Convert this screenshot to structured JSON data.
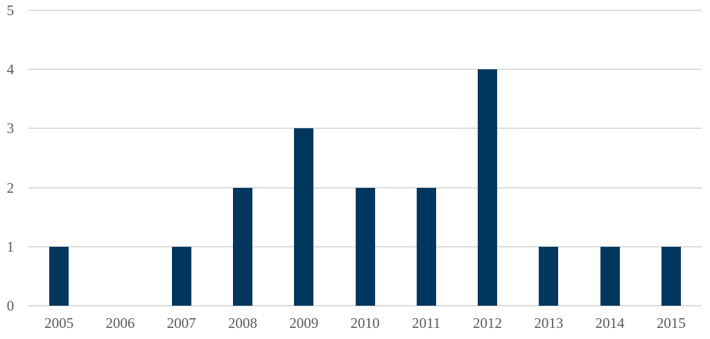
{
  "chart_data": {
    "type": "bar",
    "categories": [
      "2005",
      "2006",
      "2007",
      "2008",
      "2009",
      "2010",
      "2011",
      "2012",
      "2013",
      "2014",
      "2015"
    ],
    "values": [
      1,
      0,
      1,
      2,
      3,
      2,
      2,
      4,
      1,
      1,
      1
    ],
    "title": "",
    "xlabel": "",
    "ylabel": "",
    "ylim": [
      0,
      5
    ],
    "yticks": [
      "0",
      "1",
      "2",
      "3",
      "4",
      "5"
    ],
    "grid": true,
    "legend_position": "none",
    "colors": {
      "bar": "#00375F",
      "gridline": "#DCDCDC",
      "tick_label": "#595959",
      "background": "#FFFFFF"
    }
  }
}
